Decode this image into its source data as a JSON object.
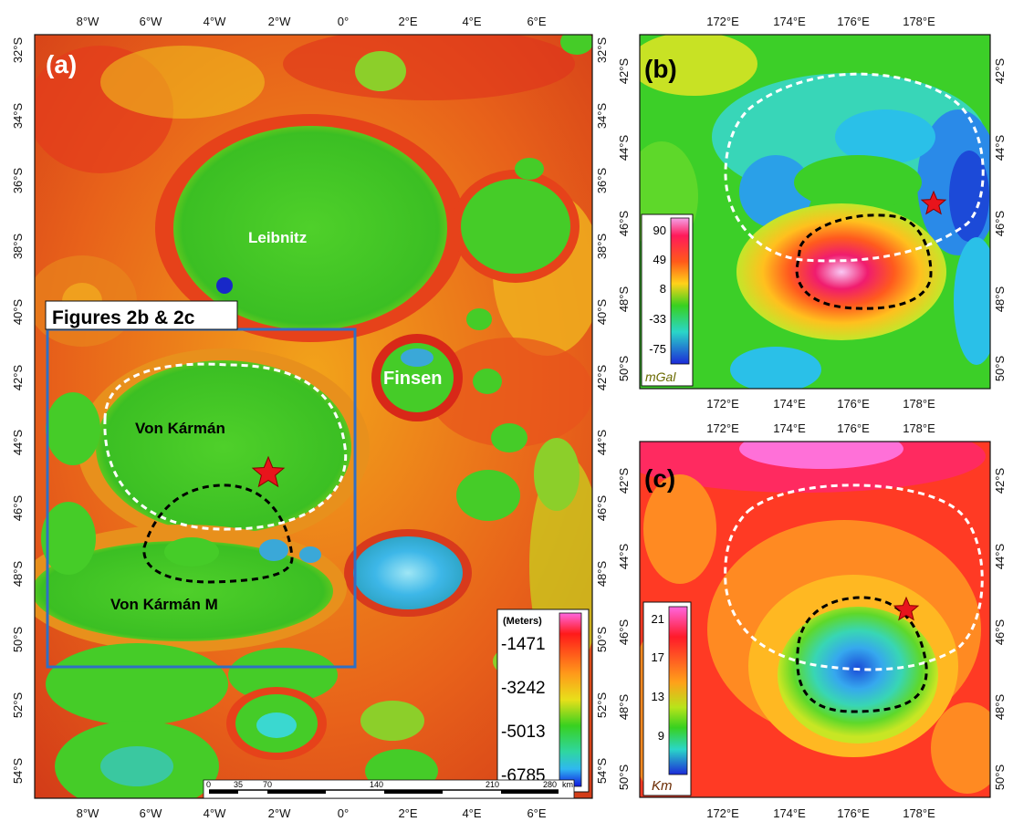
{
  "panel_a": {
    "label": "(a)",
    "lon_ticks": [
      "8°W",
      "6°W",
      "4°W",
      "2°W",
      "0°",
      "2°E",
      "4°E",
      "6°E"
    ],
    "lat_ticks": [
      "32°S",
      "34°S",
      "36°S",
      "38°S",
      "40°S",
      "42°S",
      "44°S",
      "46°S",
      "48°S",
      "50°S",
      "52°S",
      "54°S"
    ],
    "inset_label": "Figures 2b & 2c",
    "craters": {
      "leibnitz": "Leibnitz",
      "finsen": "Finsen",
      "von_karman": "Von Kármán",
      "von_karman_m": "Von Kármán M"
    },
    "legend": {
      "title": "(Meters)",
      "values": [
        "-1471",
        "-3242",
        "-5013",
        "-6785"
      ]
    },
    "scalebar": {
      "labels": [
        "0",
        "35",
        "70",
        "140",
        "210",
        "280"
      ],
      "unit": "km"
    }
  },
  "panel_b": {
    "label": "(b)",
    "lon_ticks": [
      "172°E",
      "174°E",
      "176°E",
      "178°E"
    ],
    "lat_ticks": [
      "42°S",
      "44°S",
      "46°S",
      "48°S",
      "50°S"
    ],
    "legend": {
      "values": [
        "90",
        "49",
        "8",
        "-33",
        "-75"
      ],
      "unit": "mGal"
    }
  },
  "panel_c": {
    "label": "(c)",
    "lon_ticks": [
      "172°E",
      "174°E",
      "176°E",
      "178°E"
    ],
    "lat_ticks": [
      "42°S",
      "44°S",
      "46°S",
      "48°S",
      "50°S"
    ],
    "legend": {
      "values": [
        "21",
        "17",
        "13",
        "9"
      ],
      "unit": "Km"
    }
  },
  "colors": {
    "inset_box": "#2f6fc4",
    "star": "#e8141c",
    "crater_rim_dashed": "#ffffff",
    "anomaly_dashed": "#000000"
  }
}
